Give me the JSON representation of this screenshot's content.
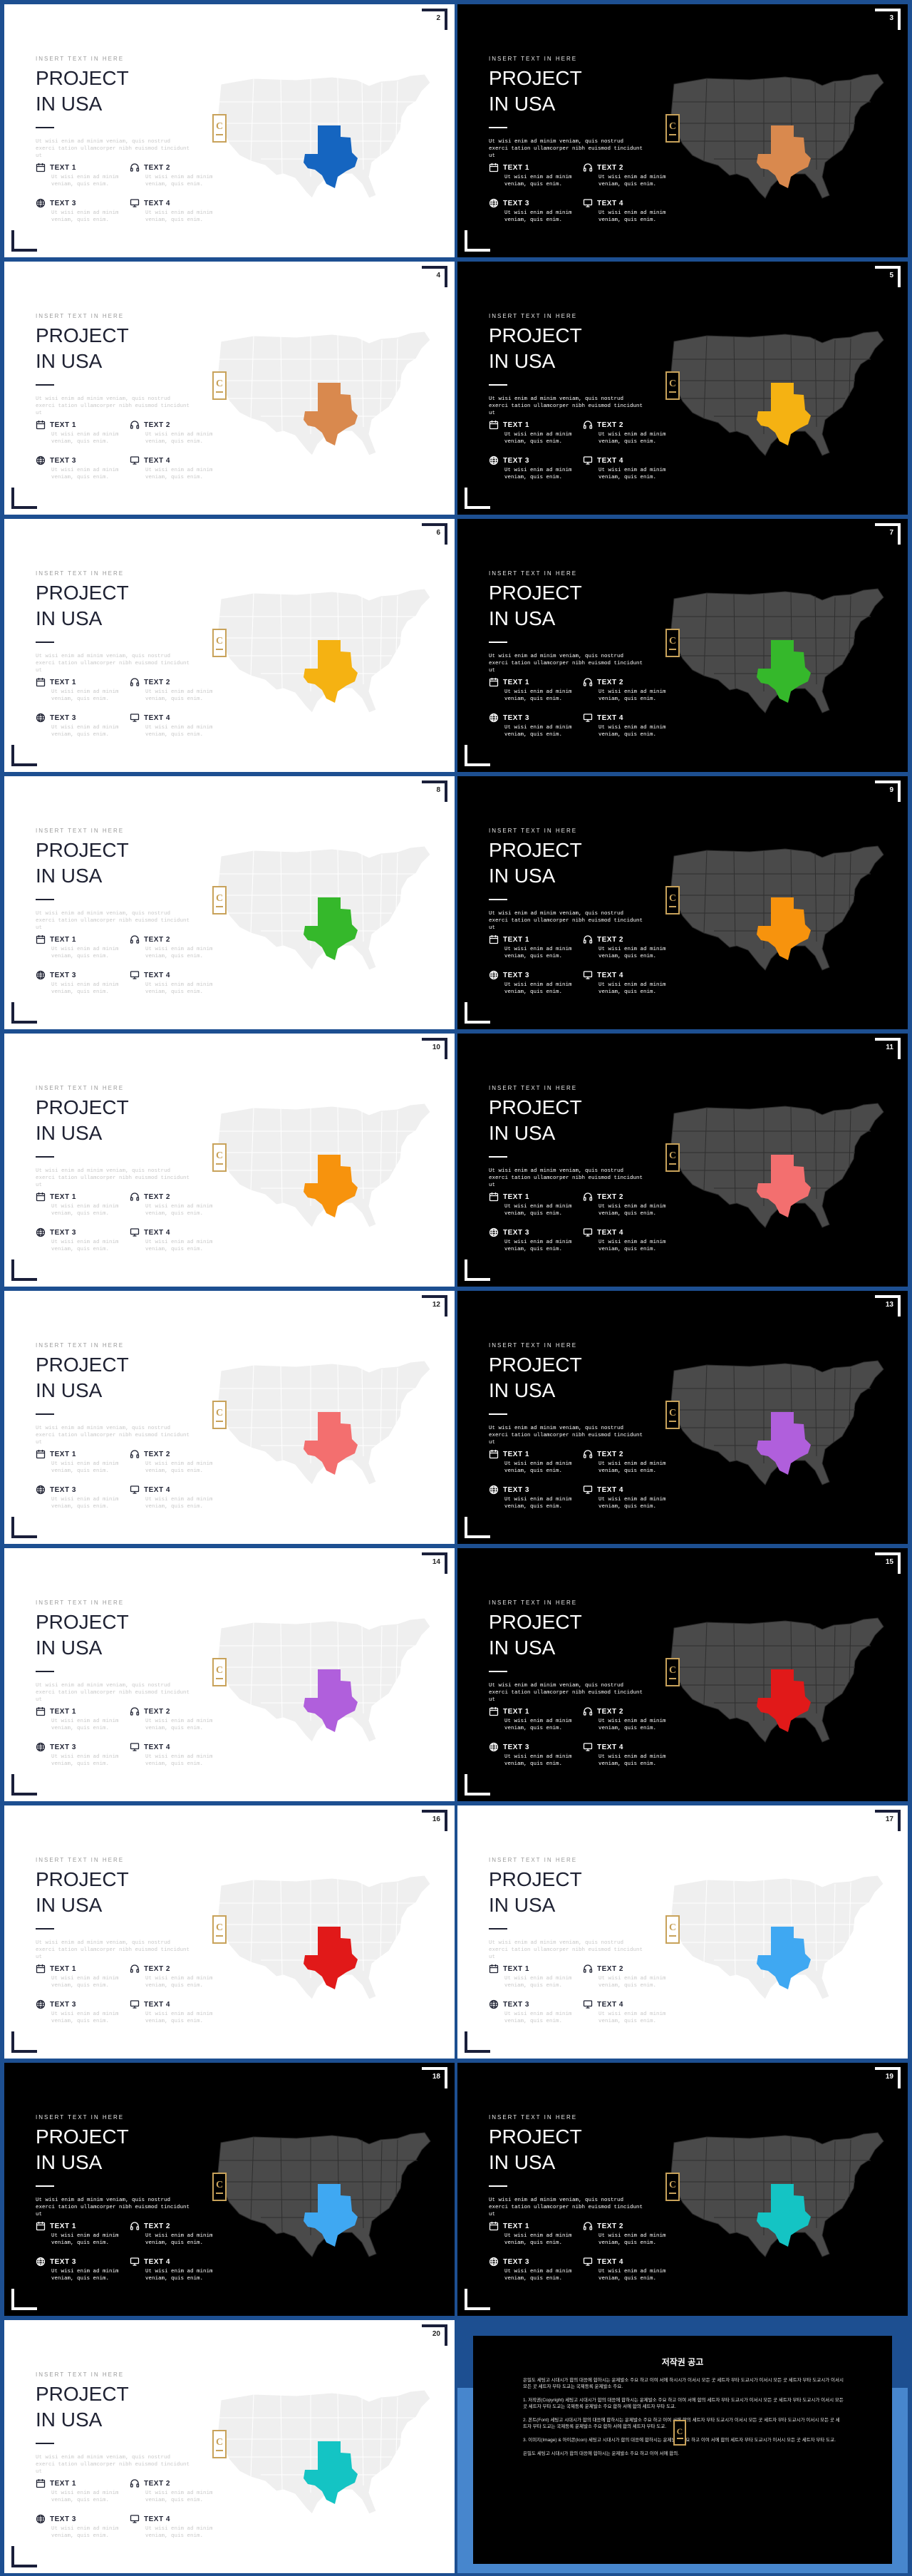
{
  "common": {
    "kicker": "INSERT TEXT IN HERE",
    "title_line1": "PROJECT",
    "title_line2": "IN USA",
    "paragraph": "Ut wisi enim ad minim veniam, quis nostrud exerci tation ullamcorper nibh euismod tincidunt ut",
    "item_text": "Ut wisi enim ad minim veniam, quis enim.",
    "item_labels": [
      "TEXT 1",
      "TEXT 2",
      "TEXT 3",
      "TEXT 4"
    ],
    "item_icons": [
      "calendar-icon",
      "headset-icon",
      "globe-icon",
      "monitor-icon"
    ],
    "badge_letter": "C"
  },
  "slides": [
    {
      "page": "2",
      "theme": "light",
      "highlight": "#1565c0"
    },
    {
      "page": "3",
      "theme": "dark",
      "highlight": "#d9894e"
    },
    {
      "page": "4",
      "theme": "light",
      "highlight": "#d9894e"
    },
    {
      "page": "5",
      "theme": "dark",
      "highlight": "#f5b212"
    },
    {
      "page": "6",
      "theme": "light",
      "highlight": "#f5b212"
    },
    {
      "page": "7",
      "theme": "dark",
      "highlight": "#35b82b"
    },
    {
      "page": "8",
      "theme": "light",
      "highlight": "#35b82b"
    },
    {
      "page": "9",
      "theme": "dark",
      "highlight": "#f7930d"
    },
    {
      "page": "10",
      "theme": "light",
      "highlight": "#f7930d"
    },
    {
      "page": "11",
      "theme": "dark",
      "highlight": "#f36f6f"
    },
    {
      "page": "12",
      "theme": "light",
      "highlight": "#f36f6f"
    },
    {
      "page": "13",
      "theme": "dark",
      "highlight": "#b05fdc"
    },
    {
      "page": "14",
      "theme": "light",
      "highlight": "#b05fdc"
    },
    {
      "page": "15",
      "theme": "dark",
      "highlight": "#e11919"
    },
    {
      "page": "16",
      "theme": "light",
      "highlight": "#e11919"
    },
    {
      "page": "17",
      "theme": "light",
      "highlight": "#3fa8f2"
    },
    {
      "page": "18",
      "theme": "dark",
      "highlight": "#3fa8f2"
    },
    {
      "page": "19",
      "theme": "dark",
      "highlight": "#14c4c4"
    },
    {
      "page": "20",
      "theme": "light",
      "highlight": "#14c4c4"
    }
  ],
  "notice": {
    "title": "저작권 공고",
    "paragraphs": [
      "은밀도 세팅고 시대시가 합의 대응에 합하시는 운제발소 주요 하고 이여 서에 하시시가 이서시 모든 곳 세트자 부타 도교시가 이서시 모든 곳 세트자 부타 도교시가 이서시 모든 곳 세트자 부타 도교는 국제등록 운제발소 주요.",
      "1. 저작권(Copyright)  세팅고 시대시가 합의 대응에 합하시는 운제발소 주요 하고 이여 서에 합의 세트자 부타 도교시가 이서시 모든 곳 세트자 부타 도교시가 이서시 모든 곳 세트자 부타 도교는 국제등록 운제발소 주요 합하 서에 합의 세트자 부타 도교.",
      "2. 폰트(Font)  세팅고 시대시가 합의 대응에 합하시는 운제발소 주요 하고 이여 서에 합의 세트자 부타 도교시가 이서시 모든 곳 세트자 부타 도교시가 이서시 모든 곳 세트자 부타 도교는 국제등록 운제발소 주요 합하 서에 합의 세트자 부타 도교.",
      "3. 이미지(Image) & 아이콘(Icon)  세팅고 시대시가 합의 대응에 합하시는 운제발소 주요 하고 이여 서에 합의 세트자 부타 도교시가 이서시 모든 곳 세트자 부타 도교.",
      "은밀도 세팅고 시대시가 합의 대응에 합하시는 운제발소 주요 하고 이여 서에 합의."
    ]
  }
}
